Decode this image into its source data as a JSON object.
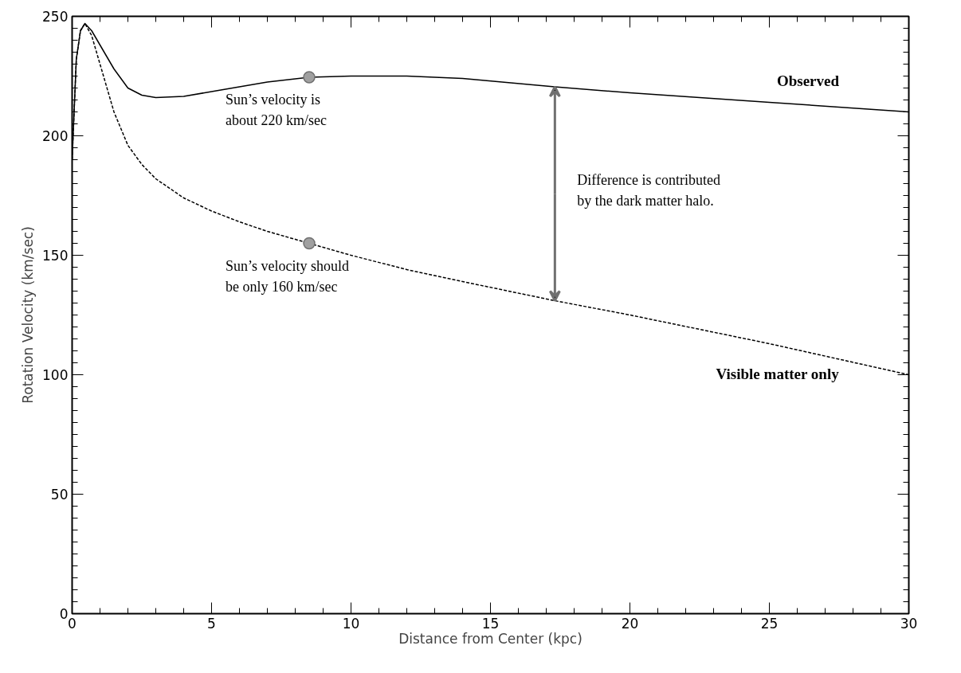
{
  "chart_data": {
    "type": "line",
    "xlabel": "Distance from Center (kpc)",
    "ylabel": "Rotation Velocity (km/sec)",
    "xlim": [
      0,
      30
    ],
    "ylim": [
      0,
      250
    ],
    "xticks": [
      0,
      5,
      10,
      15,
      20,
      25,
      30
    ],
    "yticks": [
      0,
      50,
      100,
      150,
      200,
      250
    ],
    "grid": false,
    "series": [
      {
        "name": "Observed",
        "color": "#000000",
        "line_style": "solid",
        "x": [
          0,
          0.15,
          0.3,
          0.46,
          0.7,
          1,
          1.5,
          2,
          2.5,
          3,
          4,
          5,
          6,
          7,
          8.5,
          10,
          12,
          14,
          17.3,
          20,
          25,
          30
        ],
        "values": [
          190,
          232,
          244,
          247,
          244,
          238,
          228,
          220,
          217,
          216,
          216.5,
          218.5,
          220.5,
          222.5,
          224.5,
          225,
          225,
          224,
          220.5,
          218,
          214,
          210
        ]
      },
      {
        "name": "Visible matter only",
        "color": "#000000",
        "line_style": "dashed",
        "x": [
          0,
          0.15,
          0.3,
          0.46,
          0.7,
          1,
          1.5,
          2,
          2.5,
          3,
          4,
          5,
          6,
          7,
          8.5,
          10,
          12,
          14,
          17.3,
          20,
          25,
          30
        ],
        "values": [
          190,
          232,
          244,
          247,
          242,
          230,
          210,
          196,
          188,
          182,
          174,
          168.5,
          164,
          160,
          155,
          150,
          144,
          139,
          131,
          125,
          113,
          100
        ]
      },
      {
        "type": "scatter",
        "color": "#a0a0a0",
        "marker": "circle",
        "x": [
          8.5,
          8.5
        ],
        "values": [
          224.5,
          155
        ]
      }
    ],
    "annotations": [
      "Sun’s velocity is\nabout 220 km/sec",
      "Sun’s velocity should\nbe only 160 km/sec",
      "Difference is contributed\nby the dark matter halo."
    ]
  }
}
